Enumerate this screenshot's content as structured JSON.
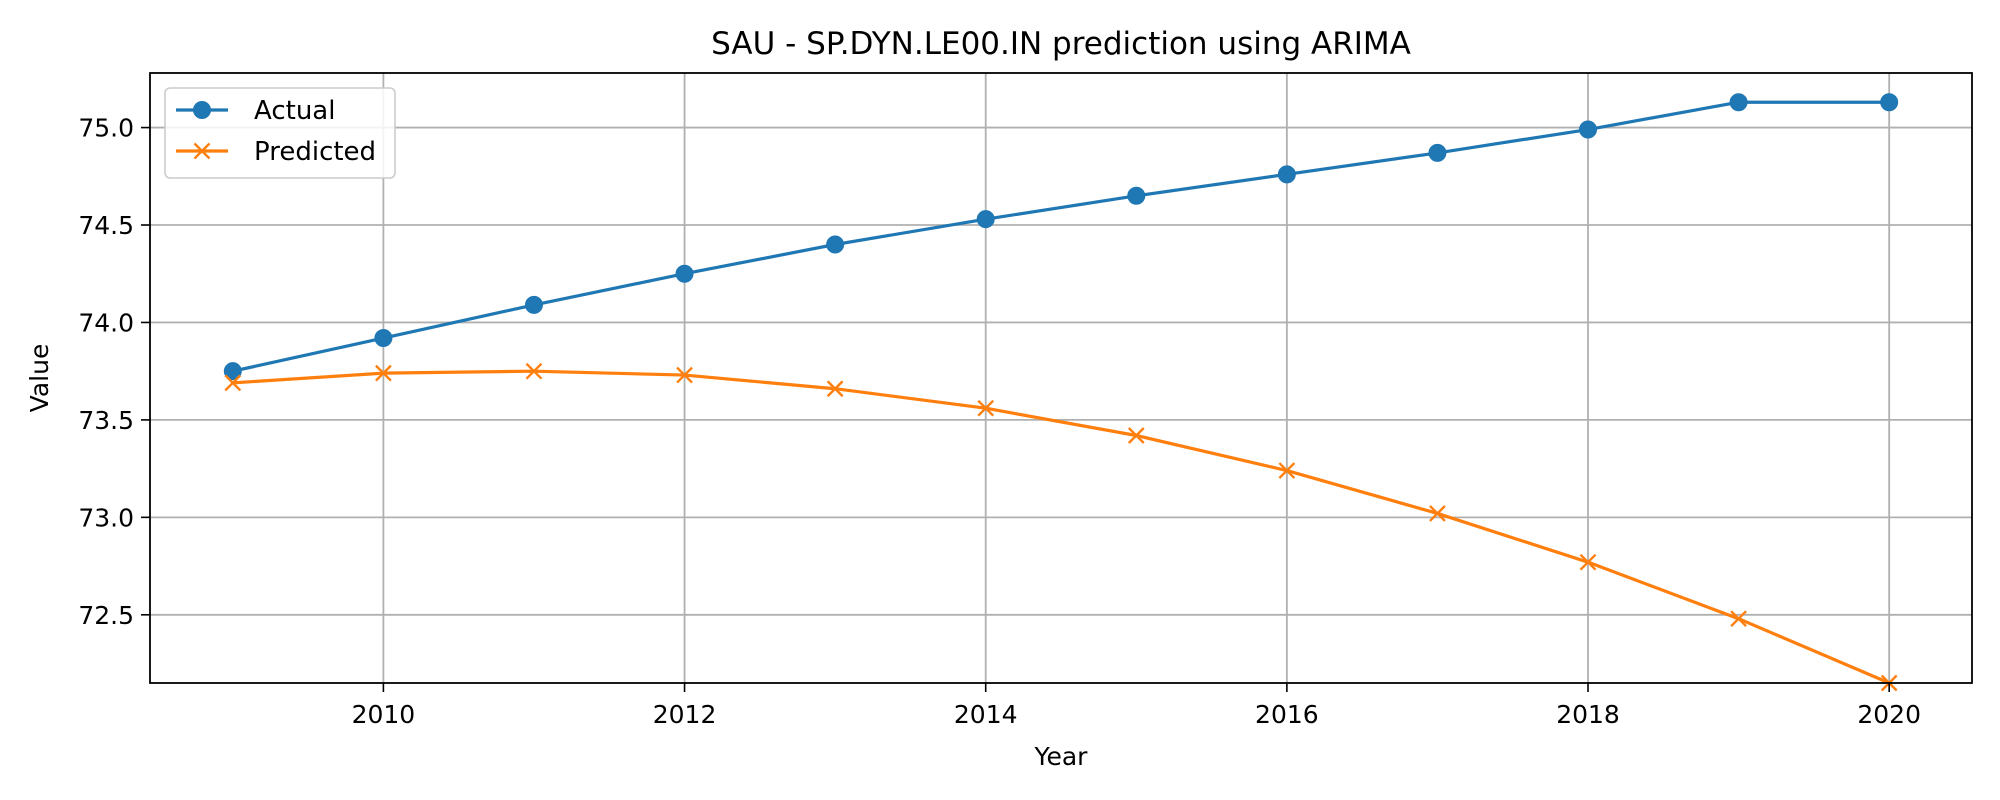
{
  "chart_data": {
    "type": "line",
    "title": "SAU - SP.DYN.LE00.IN prediction using ARIMA",
    "xlabel": "Year",
    "ylabel": "Value",
    "x": [
      2009,
      2010,
      2011,
      2012,
      2013,
      2014,
      2015,
      2016,
      2017,
      2018,
      2019,
      2020
    ],
    "xlim": [
      2008.45,
      2020.55
    ],
    "ylim": [
      72.15,
      75.28
    ],
    "xticks": [
      2010,
      2012,
      2014,
      2016,
      2018,
      2020
    ],
    "yticks": [
      72.5,
      73.0,
      73.5,
      74.0,
      74.5,
      75.0
    ],
    "grid": true,
    "legend_position": "upper-left",
    "series": [
      {
        "name": "Actual",
        "color": "#1f77b4",
        "marker": "circle",
        "values": [
          73.75,
          73.92,
          74.09,
          74.25,
          74.4,
          74.53,
          74.65,
          74.76,
          74.87,
          74.99,
          75.13,
          75.13
        ]
      },
      {
        "name": "Predicted",
        "color": "#ff7f0e",
        "marker": "x",
        "values": [
          73.69,
          73.74,
          73.75,
          73.73,
          73.66,
          73.56,
          73.42,
          73.24,
          73.02,
          72.77,
          72.48,
          72.15
        ]
      }
    ]
  }
}
